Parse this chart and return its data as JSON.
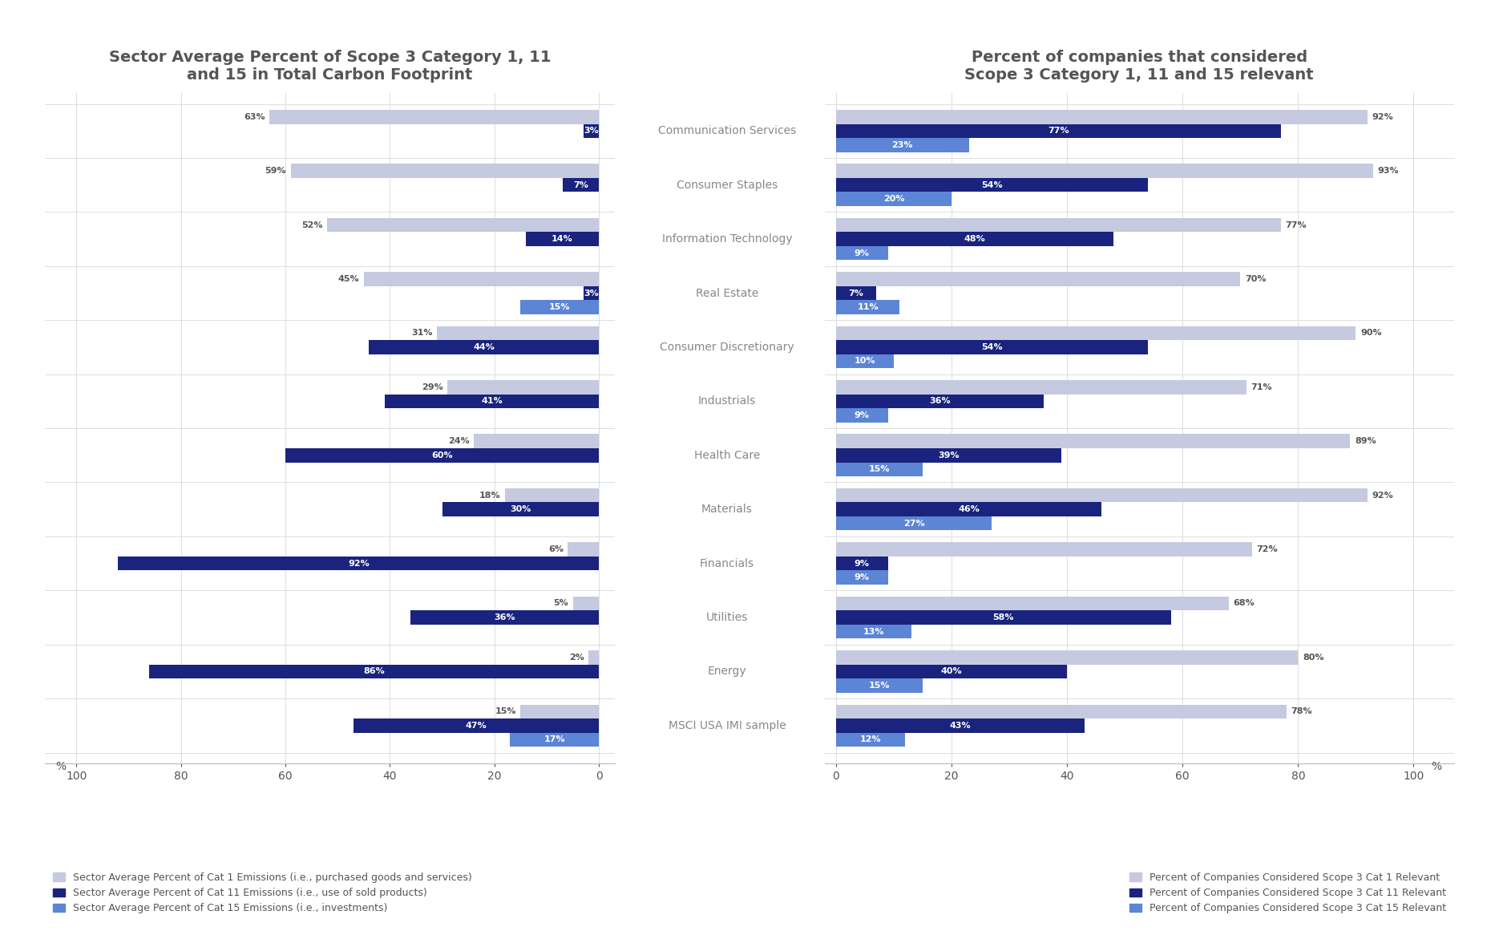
{
  "sectors": [
    "Communication Services",
    "Consumer Staples",
    "Information Technology",
    "Real Estate",
    "Consumer Discretionary",
    "Industrials",
    "Health Care",
    "Materials",
    "Financials",
    "Utilities",
    "Energy",
    "MSCI USA IMI sample"
  ],
  "left_cat1": [
    63,
    59,
    52,
    45,
    31,
    29,
    24,
    18,
    6,
    5,
    2,
    15
  ],
  "left_cat11": [
    3,
    7,
    14,
    3,
    44,
    41,
    60,
    30,
    92,
    36,
    86,
    47
  ],
  "left_cat15": [
    0,
    0,
    0,
    15,
    0,
    0,
    0,
    0,
    0,
    0,
    0,
    17
  ],
  "right_cat1": [
    92,
    93,
    77,
    70,
    90,
    71,
    89,
    92,
    72,
    68,
    80,
    78
  ],
  "right_cat11": [
    77,
    54,
    48,
    7,
    54,
    36,
    39,
    46,
    9,
    58,
    40,
    43
  ],
  "right_cat15": [
    23,
    20,
    9,
    11,
    10,
    9,
    15,
    27,
    9,
    13,
    15,
    12
  ],
  "color_cat1": "#c5cae0",
  "color_cat11": "#1a237e",
  "color_cat15": "#5c85d6",
  "title_left": "Sector Average Percent of Scope 3 Category 1, 11\nand 15 in Total Carbon Footprint",
  "title_right": "Percent of companies that considered\nScope 3 Category 1, 11 and 15 relevant",
  "legend_left": [
    "Sector Average Percent of Cat 1 Emissions (i.e., purchased goods and services)",
    "Sector Average Percent of Cat 11 Emissions (i.e., use of sold products)",
    "Sector Average Percent of Cat 15 Emissions (i.e., investments)"
  ],
  "legend_right": [
    "Percent of Companies Considered Scope 3 Cat 1 Relevant",
    "Percent of Companies Considered Scope 3 Cat 11 Relevant",
    "Percent of Companies Considered Scope 3 Cat 15 Relevant"
  ],
  "bg_color": "#ffffff"
}
